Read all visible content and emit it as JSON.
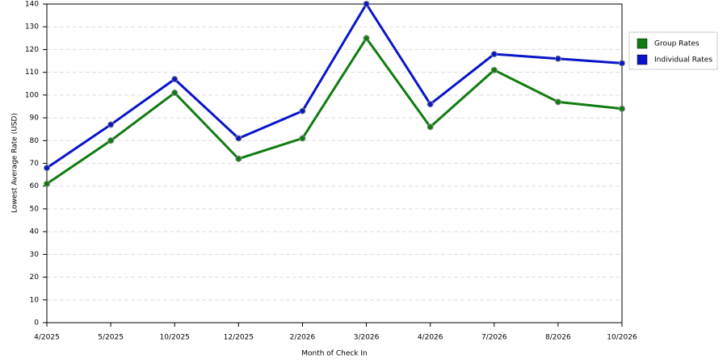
{
  "chart_data": {
    "type": "line",
    "x_label": "Month of Check In",
    "y_label": "Lowest Average Rate (USD)",
    "categories": [
      "4/2025",
      "5/2025",
      "10/2025",
      "12/2025",
      "2/2026",
      "3/2026",
      "4/2026",
      "7/2026",
      "8/2026",
      "10/2026"
    ],
    "series": [
      {
        "name": "Group Rates",
        "color": "#107c10",
        "values": [
          61,
          80,
          101,
          72,
          81,
          125,
          86,
          111,
          97,
          94
        ]
      },
      {
        "name": "Individual Rates",
        "color": "#0a14c8",
        "values": [
          68,
          87,
          107,
          81,
          93,
          140,
          96,
          118,
          116,
          114
        ]
      }
    ],
    "ylim": [
      0,
      140
    ],
    "yticks": [
      0,
      10,
      20,
      30,
      40,
      50,
      60,
      70,
      80,
      90,
      100,
      110,
      120,
      130,
      140
    ],
    "grid": true,
    "legend": "right"
  }
}
